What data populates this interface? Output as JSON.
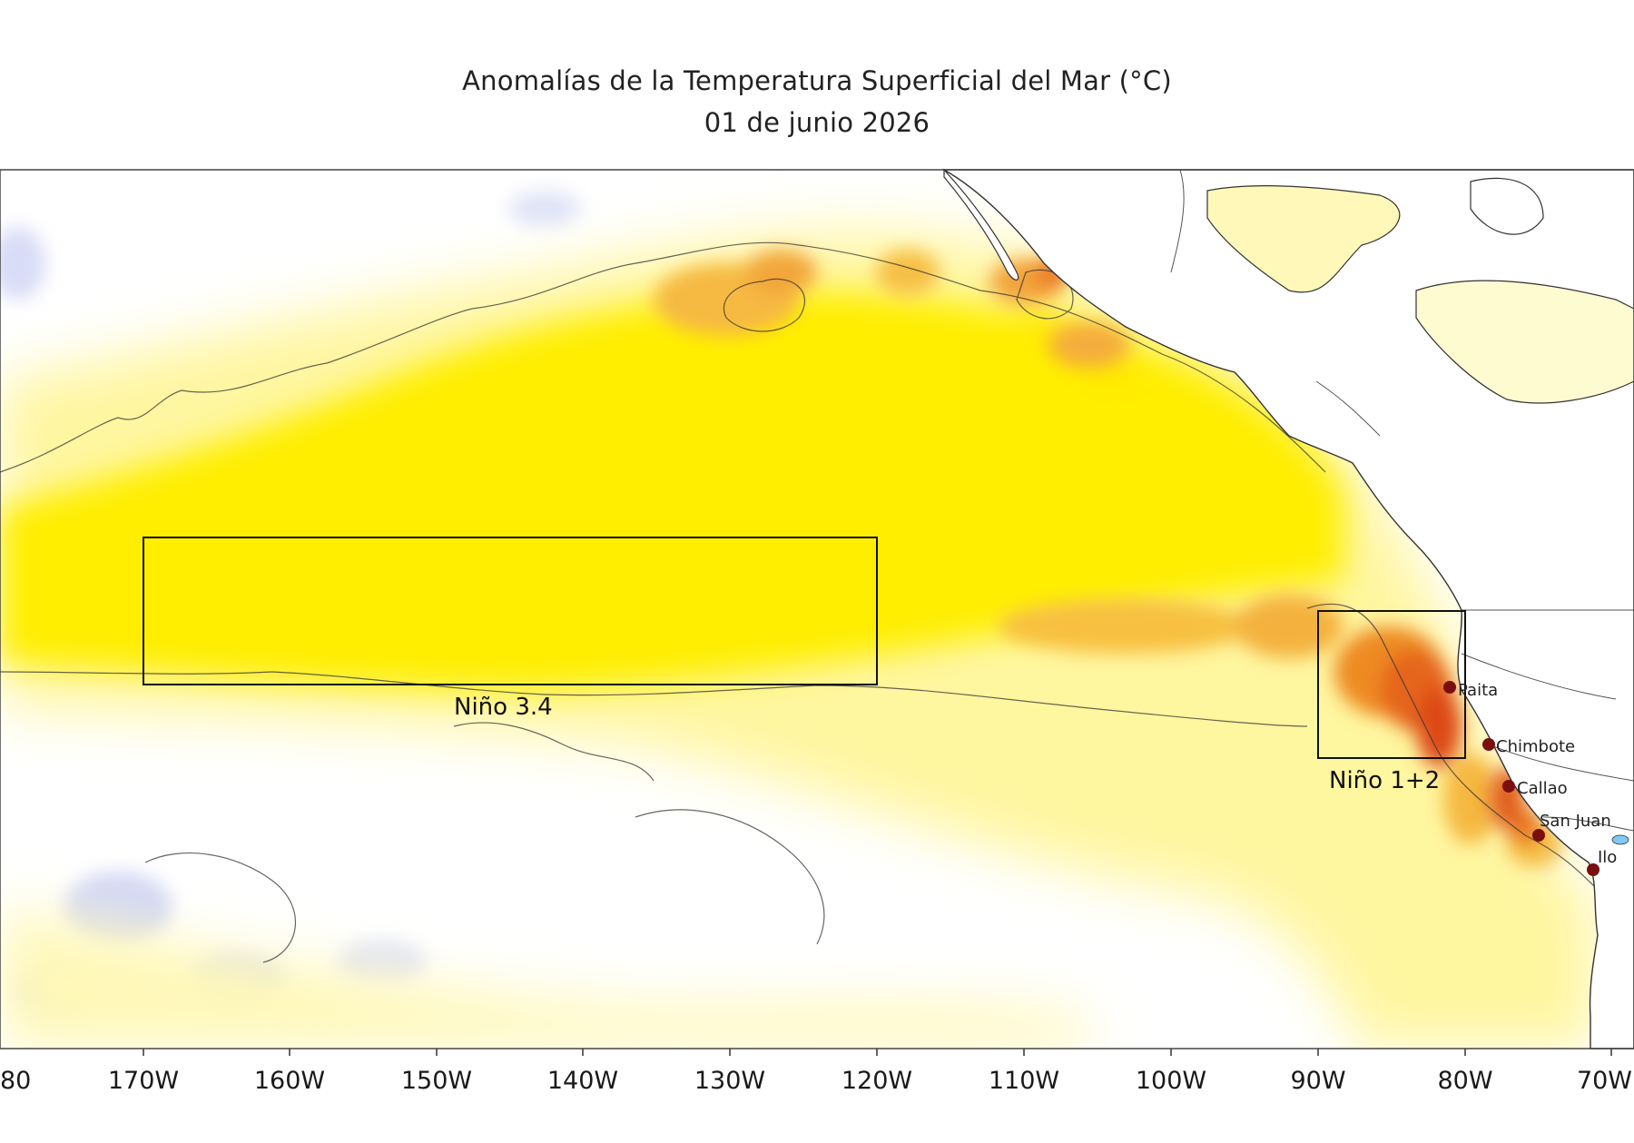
{
  "title": "Anomalías de la Temperatura Superficial del Mar (°C)",
  "subtitle": "01 de junio 2026",
  "x_axis_ticks": [
    "80",
    "170W",
    "160W",
    "150W",
    "140W",
    "130W",
    "120W",
    "110W",
    "100W",
    "90W",
    "80W",
    "70W"
  ],
  "regions": [
    {
      "label": "Niño 3.4",
      "lon_range": [
        "170W",
        "120W"
      ]
    },
    {
      "label": "Niño 1+2",
      "lon_range": [
        "90W",
        "80W"
      ]
    }
  ],
  "stations": [
    "Paita",
    "Chimbote",
    "Callao",
    "San Juan",
    "Ilo"
  ],
  "colors": {
    "cold_anomaly": "#dfe3f8",
    "neutral": "#ffffff",
    "weak_warm": "#fff7a8",
    "warm": "#ffee00",
    "moderate_warm": "#f9c23a",
    "strong_warm": "#f08a1c",
    "very_strong_warm": "#e0401a",
    "station_marker": "#7a0f0f",
    "land": "#ffffff",
    "coastline": "#333333"
  }
}
